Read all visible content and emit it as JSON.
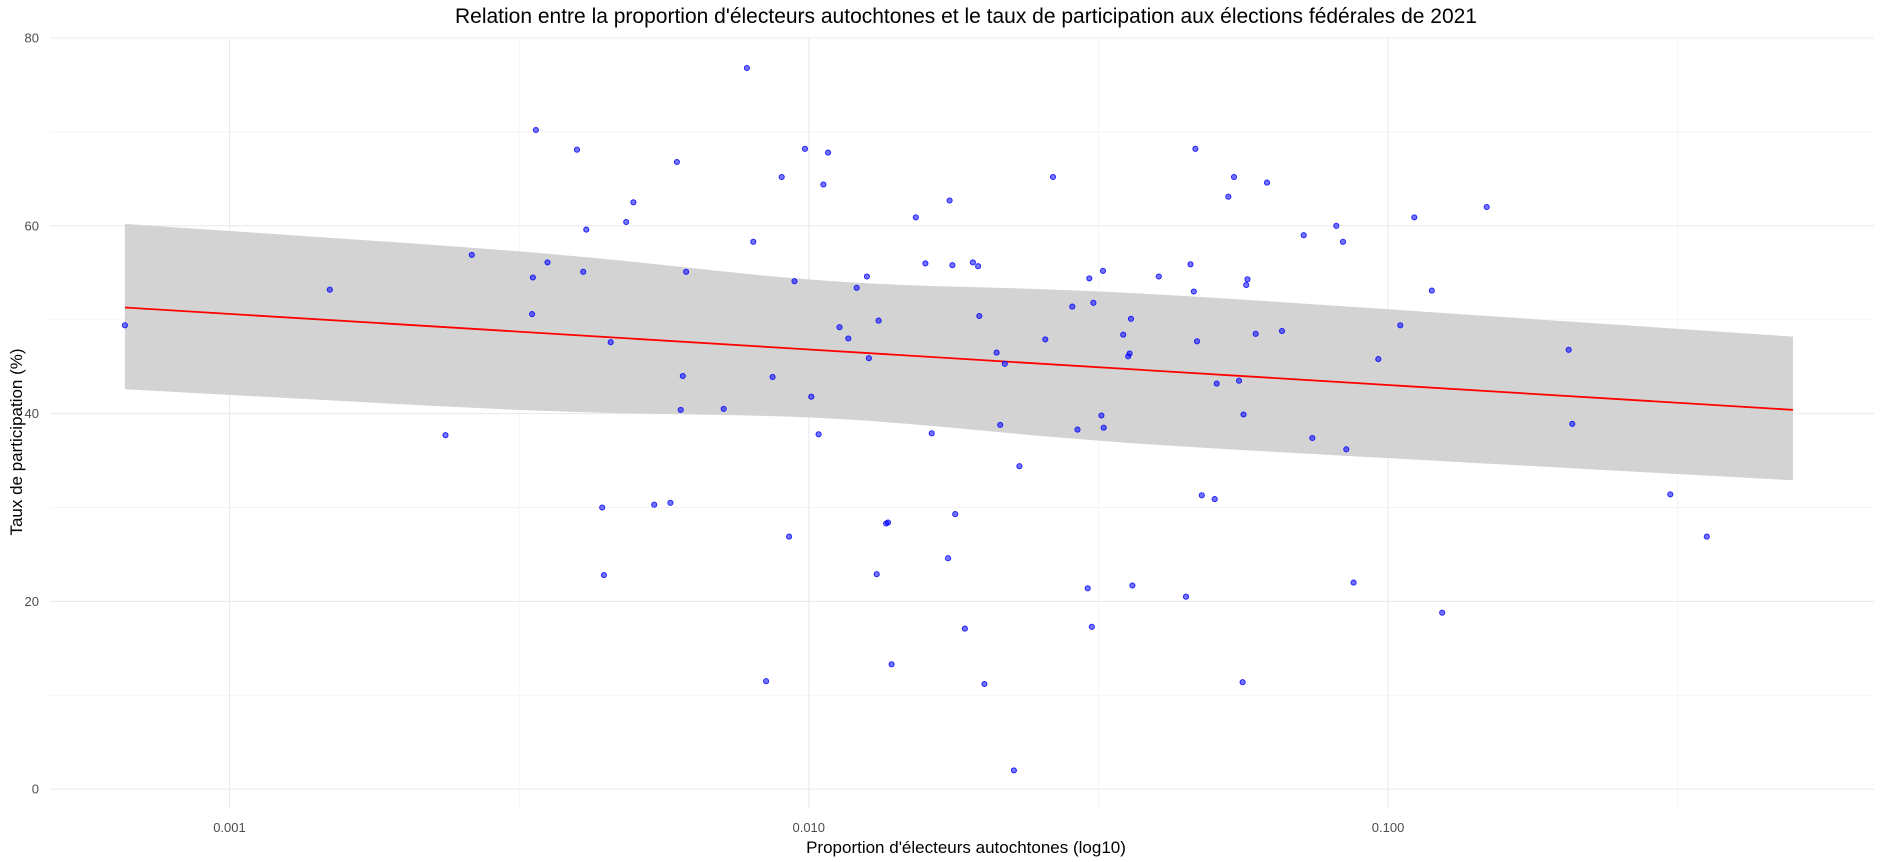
{
  "chart_data": {
    "type": "scatter",
    "title": "Relation entre la proportion d'électeurs autochtones et le taux de participation aux élections fédérales de 2021",
    "xlabel": "Proportion d'électeurs autochtones (log10)",
    "ylabel": "Taux de participation (%)",
    "x_scale": "log10",
    "xlim": [
      0.00049,
      0.69
    ],
    "ylim": [
      -2,
      80
    ],
    "x_ticks": [
      0.001,
      0.01,
      0.1
    ],
    "x_tick_labels": [
      "0.001",
      "0.010",
      "0.100"
    ],
    "y_ticks": [
      0,
      20,
      40,
      60,
      80
    ],
    "y_tick_labels": [
      "0",
      "20",
      "40",
      "60",
      "80"
    ],
    "grid": true,
    "point_color": "#0000ff",
    "fit_color": "#ff0000",
    "band_color": "#d3d3d3",
    "fit": {
      "x": [
        0.00066,
        0.5
      ],
      "y": [
        51.3,
        40.4
      ],
      "lower": [
        42.6,
        32.9
      ],
      "upper": [
        60.2,
        48.2
      ],
      "overlap_x": [
        0.0104,
        0.0119
      ]
    },
    "points": [
      [
        0.00066,
        49.4
      ],
      [
        0.00149,
        53.2
      ],
      [
        0.00236,
        37.7
      ],
      [
        0.00262,
        56.9
      ],
      [
        0.00333,
        50.6
      ],
      [
        0.00334,
        54.5
      ],
      [
        0.00338,
        70.2
      ],
      [
        0.00354,
        56.1
      ],
      [
        0.00398,
        68.1
      ],
      [
        0.00408,
        55.1
      ],
      [
        0.00413,
        59.6
      ],
      [
        0.0044,
        30.0
      ],
      [
        0.00443,
        22.8
      ],
      [
        0.00455,
        47.6
      ],
      [
        0.00484,
        60.4
      ],
      [
        0.00498,
        62.5
      ],
      [
        0.00541,
        30.3
      ],
      [
        0.00577,
        30.5
      ],
      [
        0.00592,
        66.8
      ],
      [
        0.00601,
        40.4
      ],
      [
        0.00606,
        44.0
      ],
      [
        0.00614,
        55.1
      ],
      [
        0.00713,
        40.5
      ],
      [
        0.00782,
        76.8
      ],
      [
        0.00802,
        58.3
      ],
      [
        0.00844,
        11.5
      ],
      [
        0.00866,
        43.9
      ],
      [
        0.00898,
        65.2
      ],
      [
        0.00925,
        26.9
      ],
      [
        0.00945,
        54.1
      ],
      [
        0.00985,
        68.2
      ],
      [
        0.0101,
        41.8
      ],
      [
        0.0104,
        37.8
      ],
      [
        0.0106,
        64.4
      ],
      [
        0.0108,
        67.8
      ],
      [
        0.0113,
        49.2
      ],
      [
        0.0117,
        48.0
      ],
      [
        0.0121,
        53.4
      ],
      [
        0.0126,
        54.6
      ],
      [
        0.0127,
        45.9
      ],
      [
        0.0131,
        22.9
      ],
      [
        0.0132,
        49.9
      ],
      [
        0.0136,
        28.3
      ],
      [
        0.0137,
        28.4
      ],
      [
        0.0139,
        13.3
      ],
      [
        0.0153,
        60.9
      ],
      [
        0.0159,
        56.0
      ],
      [
        0.0163,
        37.9
      ],
      [
        0.0174,
        24.6
      ],
      [
        0.0175,
        62.7
      ],
      [
        0.0177,
        55.8
      ],
      [
        0.0179,
        29.3
      ],
      [
        0.0186,
        17.1
      ],
      [
        0.0192,
        56.1
      ],
      [
        0.0196,
        55.7
      ],
      [
        0.0197,
        50.4
      ],
      [
        0.0201,
        11.2
      ],
      [
        0.0211,
        46.5
      ],
      [
        0.0214,
        38.8
      ],
      [
        0.0218,
        45.3
      ],
      [
        0.0226,
        2.0
      ],
      [
        0.0231,
        34.4
      ],
      [
        0.0256,
        47.9
      ],
      [
        0.0264,
        65.2
      ],
      [
        0.0285,
        51.4
      ],
      [
        0.0291,
        38.3
      ],
      [
        0.0303,
        21.4
      ],
      [
        0.0305,
        54.4
      ],
      [
        0.0308,
        17.3
      ],
      [
        0.031,
        51.8
      ],
      [
        0.032,
        39.8
      ],
      [
        0.0322,
        55.2
      ],
      [
        0.0323,
        38.5
      ],
      [
        0.0349,
        48.4
      ],
      [
        0.0356,
        46.1
      ],
      [
        0.0358,
        46.4
      ],
      [
        0.036,
        50.1
      ],
      [
        0.0362,
        21.7
      ],
      [
        0.0402,
        54.6
      ],
      [
        0.0448,
        20.5
      ],
      [
        0.0456,
        55.9
      ],
      [
        0.0462,
        53.0
      ],
      [
        0.0465,
        68.2
      ],
      [
        0.0468,
        47.7
      ],
      [
        0.0477,
        31.3
      ],
      [
        0.0502,
        30.9
      ],
      [
        0.0506,
        43.2
      ],
      [
        0.053,
        63.1
      ],
      [
        0.0542,
        65.2
      ],
      [
        0.0553,
        43.5
      ],
      [
        0.0561,
        11.4
      ],
      [
        0.0563,
        39.9
      ],
      [
        0.0569,
        53.7
      ],
      [
        0.0572,
        54.3
      ],
      [
        0.0591,
        48.5
      ],
      [
        0.0618,
        64.6
      ],
      [
        0.0656,
        48.8
      ],
      [
        0.0715,
        59.0
      ],
      [
        0.074,
        37.4
      ],
      [
        0.0814,
        60.0
      ],
      [
        0.0836,
        58.3
      ],
      [
        0.0847,
        36.2
      ],
      [
        0.0872,
        22.0
      ],
      [
        0.0962,
        45.8
      ],
      [
        0.105,
        49.4
      ],
      [
        0.111,
        60.9
      ],
      [
        0.119,
        53.1
      ],
      [
        0.124,
        18.8
      ],
      [
        0.148,
        62.0
      ],
      [
        0.205,
        46.8
      ],
      [
        0.208,
        38.9
      ],
      [
        0.307,
        31.4
      ],
      [
        0.355,
        26.9
      ]
    ]
  }
}
